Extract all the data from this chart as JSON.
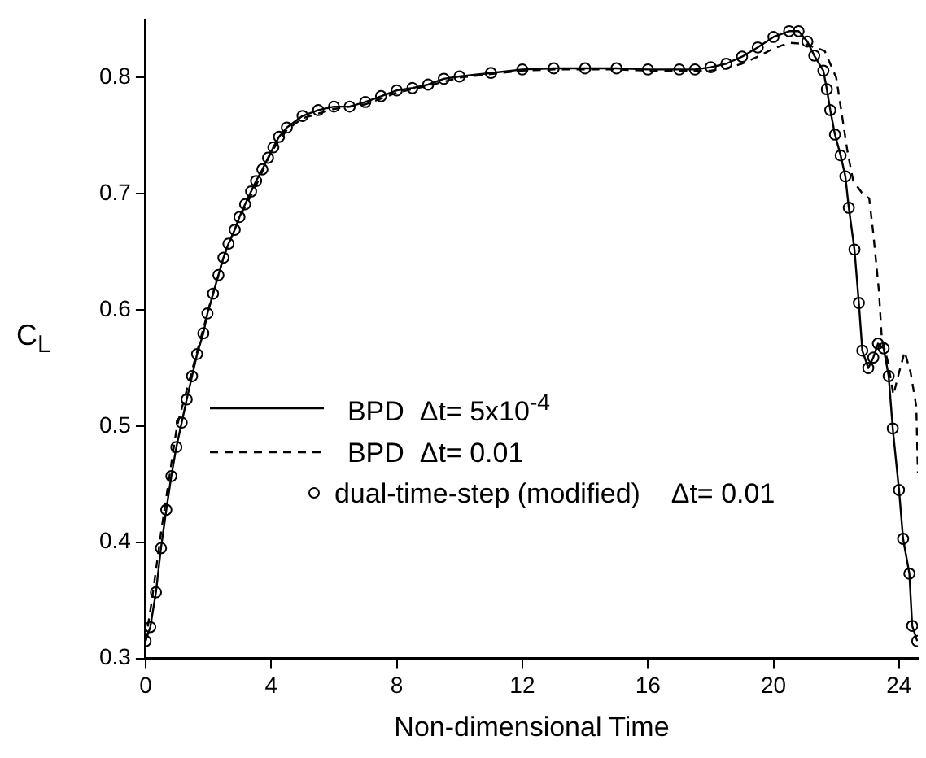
{
  "chart_data": {
    "type": "line",
    "xlabel": "Non-dimensional Time",
    "ylabel": "C$_{L}$",
    "xlim": [
      0,
      24.6
    ],
    "xticks": [
      0,
      4,
      8,
      12,
      16,
      20,
      24
    ],
    "ylim": [
      0.3,
      0.85
    ],
    "yticks": [
      0.3,
      0.4,
      0.5,
      0.6,
      0.7,
      0.8
    ],
    "legend": "center left",
    "series": [
      {
        "name": "BPD  Δt= 5x10$^{-4}$",
        "type": "line",
        "color": "#000000",
        "line_style": "solid",
        "marker": "none",
        "x": [
          0,
          0.15,
          0.33,
          0.49,
          0.66,
          0.82,
          0.98,
          1.15,
          1.31,
          1.48,
          1.64,
          1.84,
          1.97,
          2.15,
          2.32,
          2.48,
          2.64,
          2.84,
          2.99,
          3.17,
          3.36,
          3.52,
          3.72,
          3.9,
          4.07,
          4.25,
          4.5,
          5,
          5.5,
          6,
          6.5,
          7,
          7.5,
          8,
          8.5,
          9,
          9.5,
          10,
          11,
          12,
          13,
          14,
          15,
          16,
          17,
          17.5,
          18,
          18.5,
          19,
          19.5,
          20,
          20.5,
          20.8,
          21.08,
          21.3,
          21.59,
          21.7,
          21.81,
          21.96,
          22.14,
          22.29,
          22.4,
          22.58,
          22.72,
          22.83,
          23.02,
          23.18,
          23.33,
          23.51,
          23.67,
          23.8,
          24,
          24.13,
          24.33,
          24.42,
          24.58
        ],
        "values": [
          0.315,
          0.327,
          0.357,
          0.395,
          0.428,
          0.457,
          0.482,
          0.503,
          0.523,
          0.543,
          0.562,
          0.58,
          0.597,
          0.614,
          0.63,
          0.645,
          0.657,
          0.669,
          0.68,
          0.691,
          0.702,
          0.711,
          0.721,
          0.731,
          0.74,
          0.749,
          0.757,
          0.767,
          0.772,
          0.775,
          0.775,
          0.779,
          0.784,
          0.789,
          0.791,
          0.794,
          0.799,
          0.801,
          0.804,
          0.807,
          0.808,
          0.808,
          0.808,
          0.807,
          0.807,
          0.807,
          0.809,
          0.812,
          0.818,
          0.826,
          0.835,
          0.84,
          0.84,
          0.831,
          0.819,
          0.806,
          0.79,
          0.772,
          0.751,
          0.733,
          0.715,
          0.688,
          0.652,
          0.606,
          0.565,
          0.55,
          0.559,
          0.571,
          0.567,
          0.543,
          0.498,
          0.445,
          0.403,
          0.373,
          0.328,
          0.315
        ]
      },
      {
        "name": "BPD  Δt= 0.01",
        "type": "line",
        "color": "#000000",
        "line_style": "dashed",
        "marker": "none",
        "x": [
          0,
          0.2,
          0.5,
          1,
          1.5,
          2,
          2.5,
          3,
          3.5,
          4,
          4.5,
          5,
          6,
          7,
          8,
          9,
          10,
          11,
          12,
          13,
          14,
          15,
          16,
          17,
          18,
          18.5,
          19,
          19.5,
          20,
          20.5,
          21,
          21.63,
          22,
          22.36,
          22.54,
          22.81,
          23.05,
          23.18,
          23.36,
          23.45,
          23.64,
          23.82,
          24,
          24.18,
          24.37,
          24.55,
          24.6
        ],
        "values": [
          0.315,
          0.35,
          0.41,
          0.5,
          0.55,
          0.6,
          0.647,
          0.68,
          0.706,
          0.736,
          0.755,
          0.765,
          0.773,
          0.777,
          0.787,
          0.793,
          0.8,
          0.803,
          0.806,
          0.807,
          0.807,
          0.807,
          0.806,
          0.806,
          0.806,
          0.808,
          0.812,
          0.818,
          0.825,
          0.83,
          0.829,
          0.823,
          0.8,
          0.736,
          0.711,
          0.701,
          0.696,
          0.666,
          0.616,
          0.576,
          0.556,
          0.527,
          0.546,
          0.564,
          0.546,
          0.517,
          0.46
        ]
      },
      {
        "name": "dual-time-step (modified)    Δt= 0.01",
        "type": "scatter",
        "color": "#000000",
        "marker": "circle",
        "x": [
          0,
          0.15,
          0.33,
          0.49,
          0.66,
          0.82,
          0.98,
          1.15,
          1.31,
          1.48,
          1.64,
          1.84,
          1.97,
          2.15,
          2.32,
          2.48,
          2.64,
          2.84,
          2.99,
          3.17,
          3.36,
          3.52,
          3.72,
          3.9,
          4.07,
          4.25,
          4.5,
          5,
          5.5,
          6,
          6.5,
          7,
          7.5,
          8,
          8.5,
          9,
          9.5,
          10,
          11,
          12,
          13,
          14,
          15,
          16,
          17,
          17.5,
          18,
          18.5,
          19,
          19.5,
          20,
          20.5,
          20.8,
          21.08,
          21.3,
          21.59,
          21.7,
          21.81,
          21.96,
          22.14,
          22.29,
          22.4,
          22.58,
          22.72,
          22.83,
          23.02,
          23.18,
          23.33,
          23.51,
          23.67,
          23.8,
          24,
          24.13,
          24.33,
          24.42,
          24.58
        ],
        "values": [
          0.315,
          0.327,
          0.357,
          0.395,
          0.428,
          0.457,
          0.482,
          0.503,
          0.523,
          0.543,
          0.562,
          0.58,
          0.597,
          0.614,
          0.63,
          0.645,
          0.657,
          0.669,
          0.68,
          0.691,
          0.702,
          0.711,
          0.721,
          0.731,
          0.74,
          0.749,
          0.757,
          0.767,
          0.772,
          0.775,
          0.775,
          0.779,
          0.784,
          0.789,
          0.791,
          0.794,
          0.799,
          0.801,
          0.804,
          0.807,
          0.808,
          0.808,
          0.808,
          0.807,
          0.807,
          0.807,
          0.809,
          0.812,
          0.818,
          0.826,
          0.835,
          0.84,
          0.84,
          0.831,
          0.819,
          0.806,
          0.79,
          0.772,
          0.751,
          0.733,
          0.715,
          0.688,
          0.652,
          0.606,
          0.565,
          0.55,
          0.559,
          0.571,
          0.567,
          0.543,
          0.498,
          0.445,
          0.403,
          0.373,
          0.328,
          0.315
        ]
      }
    ]
  }
}
